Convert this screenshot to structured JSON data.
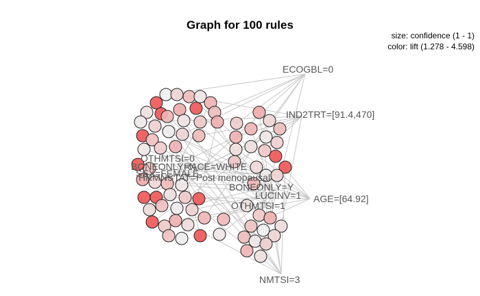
{
  "title": "Graph for 100 rules",
  "legend": {
    "size": "size: confidence (1 - 1)",
    "color": "color: lift (1.278 - 4.598)"
  },
  "colors": {
    "edge": "#c8c8c8",
    "label": "#555555",
    "node_stroke": "#222222",
    "lift_low": "#eeeeee",
    "lift_high": "#ee5555"
  },
  "item_labels": [
    "ECOGBL=0",
    "IND2TRT=[91.4,470]",
    "AGE=[64.92]",
    "OTHMTSI=1",
    "NMTSI=3",
    "OTHMTSI=0",
    "RACE=WHITE",
    "HRMNSTAT=Post menopausal",
    "BONEONLY=Y",
    "LUCINV=1",
    "BONEONLY=N",
    "SEX=FEMALE"
  ]
}
